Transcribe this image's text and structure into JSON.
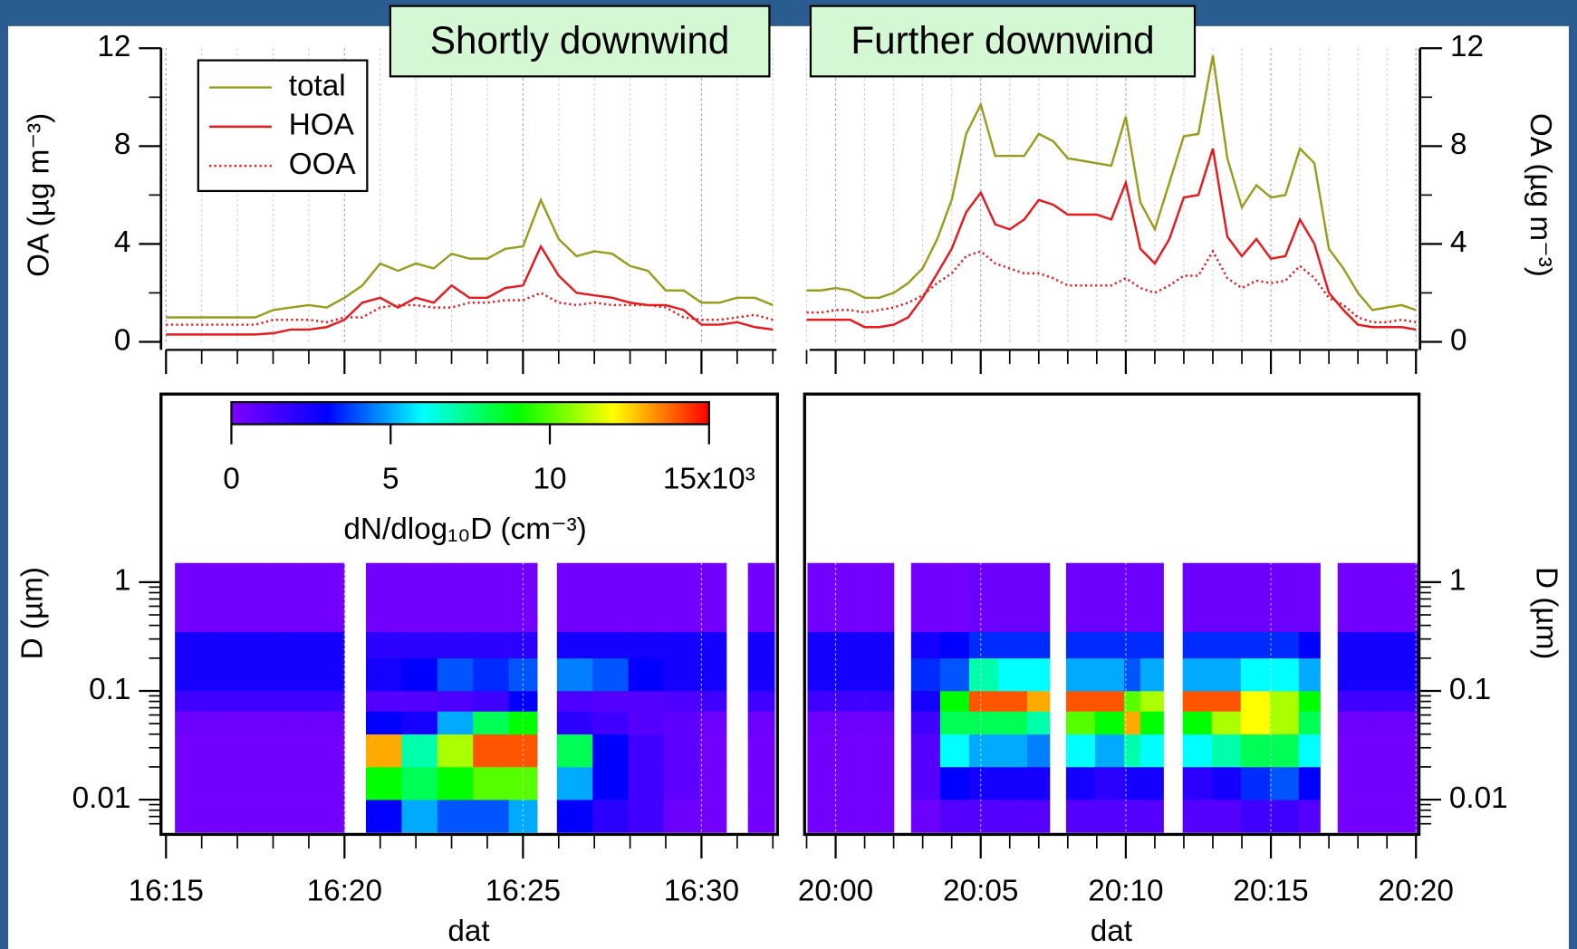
{
  "chart_data": [
    {
      "type": "line",
      "title": "Shortly downwind",
      "ylabel": "OA (µg m⁻³)",
      "yaxis": "left",
      "legend": "top-left",
      "grid": true,
      "x": [
        975,
        975.5,
        976,
        976.5,
        977,
        977.5,
        978,
        978.5,
        979,
        979.5,
        980,
        980.5,
        981,
        981.5,
        982,
        982.5,
        983,
        983.5,
        984,
        984.5,
        985,
        985.5,
        986,
        986.5,
        987,
        987.5,
        988,
        988.5,
        989,
        989.5,
        990,
        990.5,
        991,
        991.5,
        992
      ],
      "series": [
        {
          "name": "total",
          "color": "#9c9c1c",
          "dash": "solid",
          "values": [
            1.0,
            1.0,
            1.0,
            1.0,
            1.0,
            1.0,
            1.3,
            1.4,
            1.5,
            1.4,
            1.8,
            2.3,
            3.2,
            2.9,
            3.2,
            3.0,
            3.6,
            3.4,
            3.4,
            3.8,
            3.9,
            5.8,
            4.2,
            3.5,
            3.7,
            3.6,
            3.1,
            2.9,
            2.1,
            2.1,
            1.6,
            1.6,
            1.8,
            1.8,
            1.5
          ]
        },
        {
          "name": "HOA",
          "color": "#e8191c",
          "dash": "solid",
          "values": [
            0.3,
            0.3,
            0.3,
            0.3,
            0.3,
            0.3,
            0.35,
            0.5,
            0.5,
            0.6,
            0.9,
            1.6,
            1.8,
            1.4,
            1.8,
            1.6,
            2.3,
            1.8,
            1.8,
            2.2,
            2.3,
            3.9,
            2.7,
            2.0,
            1.9,
            1.8,
            1.6,
            1.5,
            1.5,
            1.3,
            0.7,
            0.7,
            0.8,
            0.6,
            0.5
          ]
        },
        {
          "name": "OOA",
          "color": "#e8191c",
          "dash": "dotted",
          "values": [
            0.7,
            0.7,
            0.7,
            0.7,
            0.7,
            0.7,
            0.9,
            0.9,
            0.9,
            0.8,
            1.0,
            1.0,
            1.4,
            1.5,
            1.5,
            1.4,
            1.4,
            1.6,
            1.6,
            1.7,
            1.7,
            2.0,
            1.6,
            1.5,
            1.6,
            1.5,
            1.5,
            1.5,
            1.4,
            1.0,
            0.9,
            0.9,
            1.0,
            1.1,
            0.9
          ]
        }
      ],
      "xlim": [
        974.86,
        992.1
      ],
      "xticks": [
        975,
        980,
        985,
        990
      ],
      "xminorticks": [
        976,
        977,
        978,
        979,
        981,
        982,
        983,
        984,
        986,
        987,
        988,
        989,
        991,
        992
      ],
      "ylim": [
        0,
        12
      ],
      "yticks": [
        0,
        4,
        8,
        12
      ],
      "yminorticks": [
        2,
        6,
        10
      ]
    },
    {
      "type": "line",
      "title": "Further downwind",
      "ylabel": "OA (µg m⁻³)",
      "yaxis": "right",
      "grid": true,
      "x": [
        1199,
        1199.5,
        1200,
        1200.5,
        1201,
        1201.5,
        1202,
        1202.5,
        1203,
        1203.5,
        1204,
        1204.5,
        1205,
        1205.5,
        1206,
        1206.5,
        1207,
        1207.5,
        1208,
        1208.5,
        1209,
        1209.5,
        1210,
        1210.5,
        1211,
        1211.5,
        1212,
        1212.5,
        1213,
        1213.5,
        1214,
        1214.5,
        1215,
        1215.5,
        1216,
        1216.5,
        1217,
        1217.5,
        1218,
        1218.5,
        1219,
        1219.5,
        1220
      ],
      "series": [
        {
          "color": "#9c9c1c",
          "dash": "solid",
          "values": [
            2.1,
            2.1,
            2.2,
            2.1,
            1.8,
            1.8,
            2.0,
            2.4,
            3.0,
            4.2,
            5.8,
            8.5,
            9.7,
            7.6,
            7.6,
            7.6,
            8.5,
            8.2,
            7.5,
            7.4,
            7.3,
            7.2,
            9.2,
            5.7,
            4.6,
            6.5,
            8.4,
            8.5,
            11.7,
            7.5,
            5.5,
            6.4,
            5.9,
            6.0,
            7.9,
            7.3,
            3.8,
            3.0,
            2.0,
            1.3,
            1.4,
            1.5,
            1.3
          ]
        },
        {
          "color": "#e8191c",
          "dash": "solid",
          "values": [
            0.9,
            0.9,
            0.9,
            0.9,
            0.6,
            0.6,
            0.7,
            1.0,
            1.8,
            2.8,
            3.8,
            5.3,
            6.1,
            4.8,
            4.6,
            5.0,
            5.8,
            5.6,
            5.2,
            5.2,
            5.2,
            5.0,
            6.5,
            3.8,
            3.2,
            4.2,
            5.9,
            6.0,
            7.9,
            4.3,
            3.5,
            4.2,
            3.4,
            3.5,
            5.0,
            4.0,
            2.0,
            1.3,
            0.7,
            0.6,
            0.6,
            0.6,
            0.5
          ]
        },
        {
          "color": "#e8191c",
          "dash": "dotted",
          "values": [
            1.2,
            1.2,
            1.3,
            1.3,
            1.2,
            1.3,
            1.4,
            1.6,
            1.9,
            2.4,
            2.8,
            3.5,
            3.7,
            3.2,
            3.0,
            2.8,
            2.8,
            2.6,
            2.3,
            2.3,
            2.3,
            2.3,
            2.6,
            2.2,
            2.0,
            2.3,
            2.7,
            2.7,
            3.7,
            2.6,
            2.2,
            2.5,
            2.4,
            2.5,
            3.1,
            2.6,
            1.8,
            1.5,
            1.0,
            0.8,
            0.8,
            0.9,
            0.8
          ]
        }
      ],
      "xlim": [
        1198.93,
        1220.07
      ],
      "xticks": [
        1200,
        1205,
        1210,
        1215,
        1220
      ],
      "xminorticks": [
        1199,
        1201,
        1202,
        1203,
        1204,
        1206,
        1207,
        1208,
        1209,
        1211,
        1212,
        1213,
        1214,
        1216,
        1217,
        1218,
        1219
      ],
      "ylim": [
        0,
        12
      ],
      "yticks": [
        0,
        4,
        8,
        12
      ],
      "yminorticks": [
        2,
        6,
        10
      ]
    },
    {
      "type": "heatmap",
      "ylabel": "D (µm)",
      "xlabel": "dat",
      "yaxis": "left",
      "log_y": true,
      "grid": true,
      "x_edges": [
        975.25,
        976.25,
        977.25,
        978.25,
        979.25,
        980.0,
        980.6,
        981.6,
        982.6,
        983.6,
        984.6,
        985.4,
        985.95,
        986.95,
        987.95,
        988.95,
        989.95,
        990.7,
        991.3,
        992.05
      ],
      "y_edges": [
        0.005,
        0.01,
        0.02,
        0.04,
        0.065,
        0.1,
        0.2,
        0.35,
        1.5
      ],
      "z": [
        [
          300,
          300,
          300,
          300,
          300,
          null,
          3000,
          5000,
          4000,
          4000,
          5000,
          null,
          3000,
          2000,
          1500,
          500,
          300,
          null,
          300
        ],
        [
          300,
          300,
          300,
          300,
          300,
          null,
          9000,
          8000,
          9000,
          10000,
          10000,
          null,
          5000,
          3000,
          1500,
          800,
          300,
          null,
          300
        ],
        [
          300,
          300,
          300,
          300,
          300,
          null,
          13000,
          7000,
          11000,
          14000,
          14000,
          null,
          8000,
          3000,
          1500,
          800,
          300,
          null,
          300
        ],
        [
          500,
          500,
          500,
          500,
          500,
          null,
          3000,
          2500,
          5000,
          8000,
          9000,
          null,
          2000,
          1500,
          1000,
          800,
          500,
          null,
          500
        ],
        [
          1500,
          1500,
          1500,
          1500,
          1500,
          null,
          1000,
          1000,
          1200,
          1500,
          3000,
          null,
          1200,
          1000,
          1000,
          1200,
          1500,
          null,
          1500
        ],
        [
          2500,
          2500,
          2500,
          2500,
          2500,
          null,
          2500,
          3000,
          4000,
          3500,
          4000,
          null,
          4500,
          4000,
          3000,
          2500,
          2500,
          null,
          2500
        ],
        [
          2500,
          2500,
          2500,
          2500,
          2500,
          null,
          2000,
          2000,
          2000,
          2000,
          2000,
          null,
          2500,
          2500,
          2500,
          2500,
          2500,
          null,
          2500
        ],
        [
          300,
          300,
          300,
          300,
          300,
          null,
          300,
          300,
          300,
          300,
          300,
          null,
          300,
          300,
          300,
          300,
          300,
          null,
          300
        ]
      ],
      "xlim": [
        974.86,
        992.1
      ],
      "xticks": [
        {
          "value": 975,
          "label": "16:15"
        },
        {
          "value": 980,
          "label": "16:20"
        },
        {
          "value": 985,
          "label": "16:25"
        },
        {
          "value": 990,
          "label": "16:30"
        }
      ],
      "xminorticks": [
        976,
        977,
        978,
        979,
        981,
        982,
        983,
        984,
        986,
        987,
        988,
        989,
        991,
        992
      ],
      "ylim": [
        0.005,
        1.5
      ],
      "yticks": [
        1,
        0.1,
        0.01
      ],
      "yminorticks": [
        0.006,
        0.007,
        0.008,
        0.009,
        0.02,
        0.03,
        0.04,
        0.05,
        0.06,
        0.07,
        0.08,
        0.09,
        0.2,
        0.3,
        0.4,
        0.5,
        0.6,
        0.7,
        0.8,
        0.9
      ],
      "colorbar": {
        "label": "dN/dlog₁₀D (cm⁻³)",
        "zlim": [
          0,
          15000
        ],
        "colors": [
          "#8000ff",
          "#0000ff",
          "#00ffff",
          "#00ff00",
          "#ffff00",
          "#ff0000"
        ],
        "ticks": [
          {
            "value": 0,
            "label": "0"
          },
          {
            "value": 5000,
            "label": "5"
          },
          {
            "value": 10000,
            "label": "10"
          },
          {
            "value": 15000,
            "label": "15x10³"
          }
        ]
      }
    },
    {
      "type": "heatmap",
      "ylabel": "D (µm)",
      "xlabel": "dat",
      "yaxis": "right",
      "log_y": true,
      "grid": true,
      "x_edges": [
        1199.03,
        1200,
        1201,
        1202.01,
        1202.6,
        1203.6,
        1204.6,
        1205.6,
        1206.6,
        1207.38,
        1207.94,
        1208.94,
        1209.94,
        1210.5,
        1211.3,
        1211.96,
        1212.96,
        1213.96,
        1214.96,
        1215.96,
        1216.7,
        1217.3,
        1218.3,
        1219.3,
        1220.07
      ],
      "y_edges": [
        0.005,
        0.01,
        0.02,
        0.04,
        0.065,
        0.1,
        0.2,
        0.35,
        1.5
      ],
      "z": [
        [
          300,
          300,
          300,
          null,
          500,
          1000,
          1000,
          1000,
          1000,
          null,
          1000,
          1000,
          1000,
          1000,
          null,
          1000,
          1000,
          1500,
          1500,
          1000,
          null,
          300,
          300,
          300
        ],
        [
          300,
          300,
          300,
          null,
          1000,
          3000,
          2500,
          2500,
          2500,
          null,
          2500,
          2000,
          2500,
          2500,
          null,
          2000,
          2500,
          3500,
          4000,
          3000,
          null,
          300,
          300,
          300
        ],
        [
          300,
          300,
          300,
          null,
          1000,
          6000,
          5000,
          5000,
          4500,
          null,
          6000,
          5000,
          7000,
          6000,
          null,
          6000,
          7000,
          8000,
          8000,
          6000,
          null,
          300,
          300,
          300
        ],
        [
          500,
          500,
          500,
          null,
          1500,
          8000,
          8000,
          8000,
          7000,
          null,
          10000,
          9000,
          13000,
          9000,
          null,
          9000,
          11000,
          12000,
          11000,
          8000,
          null,
          500,
          500,
          500
        ],
        [
          1500,
          1500,
          1500,
          null,
          2500,
          9000,
          14000,
          14000,
          13000,
          null,
          14000,
          14000,
          10000,
          11000,
          null,
          14000,
          14000,
          12000,
          11000,
          9000,
          null,
          1500,
          1500,
          1500
        ],
        [
          2500,
          2500,
          2500,
          null,
          3500,
          4000,
          7000,
          6000,
          6000,
          null,
          5000,
          5000,
          4000,
          5000,
          null,
          5000,
          5000,
          6000,
          6000,
          5000,
          null,
          2500,
          2500,
          2500
        ],
        [
          2500,
          2500,
          2500,
          null,
          2500,
          3000,
          3500,
          3500,
          3500,
          null,
          3500,
          3500,
          3500,
          3500,
          null,
          3500,
          3500,
          3500,
          3500,
          3000,
          null,
          2500,
          2500,
          2500
        ],
        [
          300,
          300,
          300,
          null,
          300,
          300,
          500,
          500,
          500,
          null,
          500,
          500,
          500,
          500,
          null,
          500,
          500,
          500,
          500,
          400,
          null,
          300,
          300,
          300
        ]
      ],
      "xlim": [
        1198.93,
        1220.07
      ],
      "xticks": [
        {
          "value": 1200,
          "label": "20:00"
        },
        {
          "value": 1205,
          "label": "20:05"
        },
        {
          "value": 1210,
          "label": "20:10"
        },
        {
          "value": 1215,
          "label": "20:15"
        },
        {
          "value": 1220,
          "label": "20:20"
        }
      ],
      "xminorticks": [
        1199,
        1201,
        1202,
        1203,
        1204,
        1206,
        1207,
        1208,
        1209,
        1211,
        1212,
        1213,
        1214,
        1216,
        1217,
        1218,
        1219
      ],
      "ylim": [
        0.005,
        1.5
      ],
      "yticks": [
        1,
        0.1,
        0.01
      ],
      "yminorticks": [
        0.006,
        0.007,
        0.008,
        0.009,
        0.02,
        0.03,
        0.04,
        0.05,
        0.06,
        0.07,
        0.08,
        0.09,
        0.2,
        0.3,
        0.4,
        0.5,
        0.6,
        0.7,
        0.8,
        0.9
      ]
    }
  ]
}
